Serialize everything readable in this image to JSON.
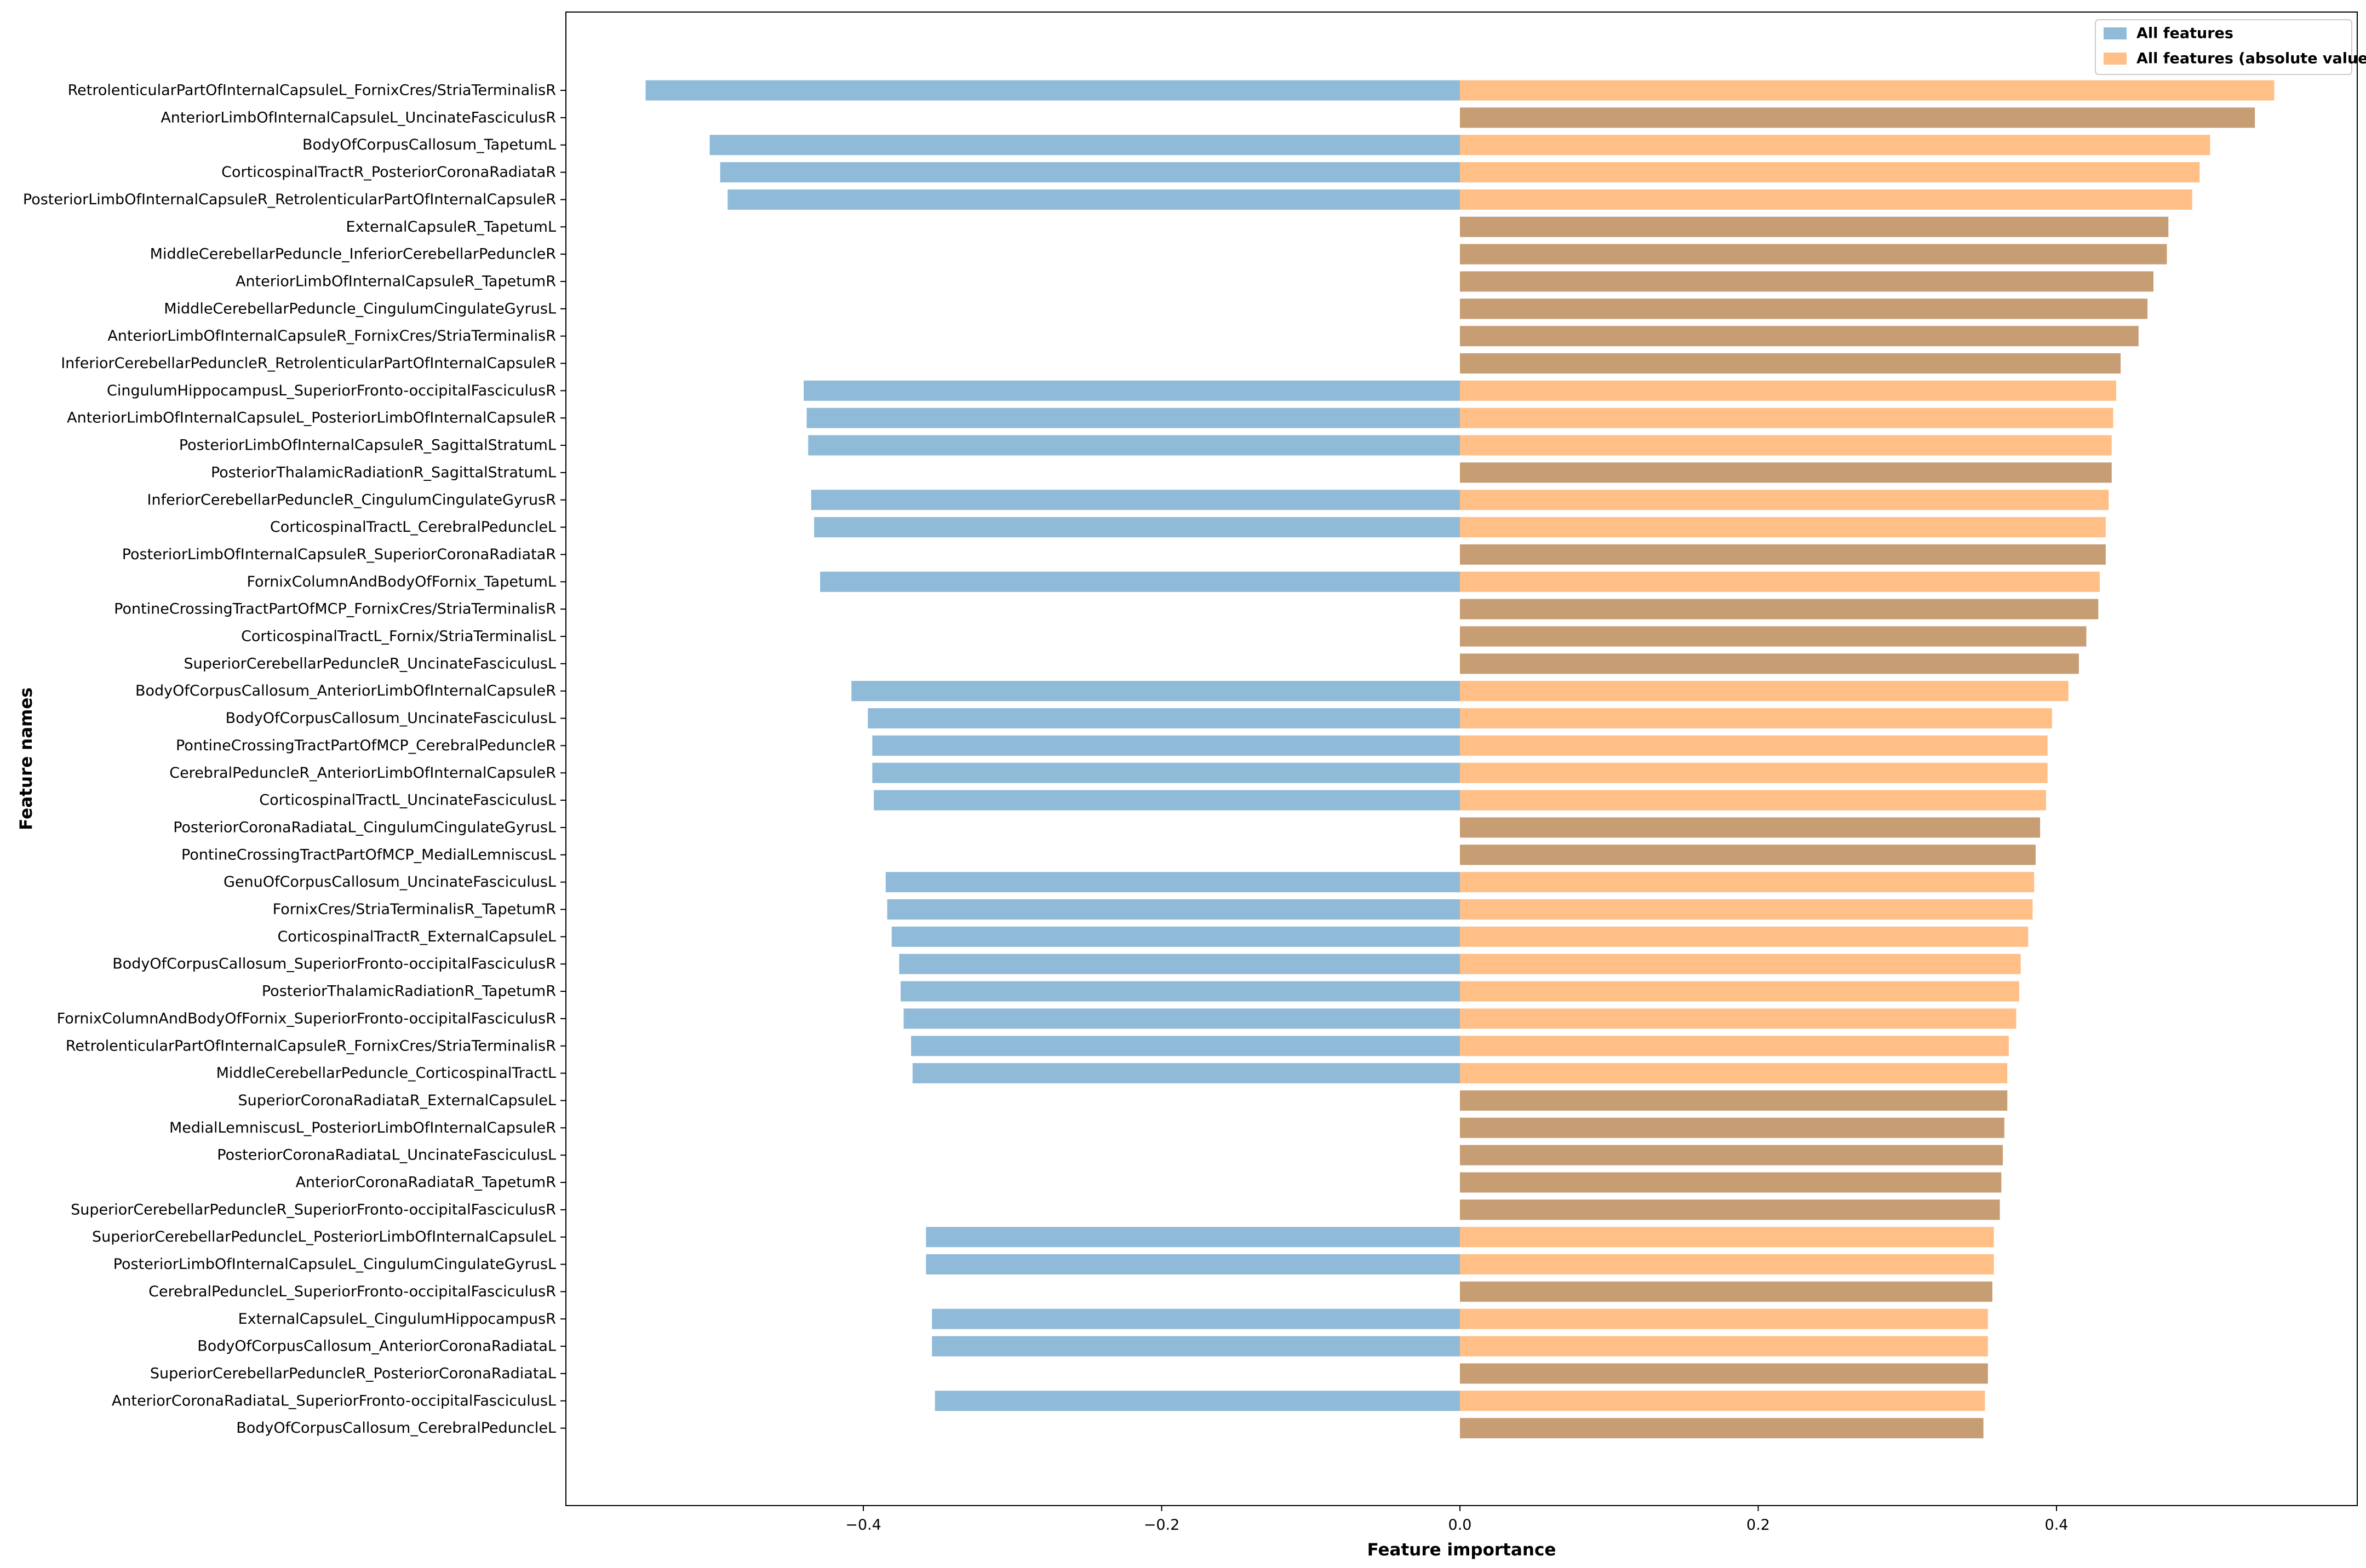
{
  "chart_data": {
    "type": "bar",
    "orientation": "horizontal",
    "xlabel": "Feature importance",
    "ylabel": "Feature names",
    "xlim": [
      -0.6,
      0.6
    ],
    "xticks": [
      -0.4,
      -0.2,
      0.0,
      0.2,
      0.4
    ],
    "xtick_labels": [
      "−0.4",
      "−0.2",
      "0.0",
      "0.2",
      "0.4"
    ],
    "grid": false,
    "legend_position": "top-right",
    "series": [
      {
        "name": "All features",
        "color": "#1f77b4",
        "opacity": 0.5
      },
      {
        "name": "All features (absolute values)",
        "color": "#ff7f0e",
        "opacity": 0.5
      }
    ],
    "features": [
      {
        "name": "RetrolenticularPartOfInternalCapsuleL_FornixCres/StriaTerminalisR",
        "value": -0.546,
        "abs": 0.546
      },
      {
        "name": "AnteriorLimbOfInternalCapsuleL_UncinateFasciculusR",
        "value": 0.533,
        "abs": 0.533
      },
      {
        "name": "BodyOfCorpusCallosum_TapetumL",
        "value": -0.503,
        "abs": 0.503
      },
      {
        "name": "CorticospinalTractR_PosteriorCoronaRadiataR",
        "value": -0.496,
        "abs": 0.496
      },
      {
        "name": "PosteriorLimbOfInternalCapsuleR_RetrolenticularPartOfInternalCapsuleR",
        "value": -0.491,
        "abs": 0.491
      },
      {
        "name": "ExternalCapsuleR_TapetumL",
        "value": 0.475,
        "abs": 0.475
      },
      {
        "name": "MiddleCerebellarPeduncle_InferiorCerebellarPeduncleR",
        "value": 0.474,
        "abs": 0.474
      },
      {
        "name": "AnteriorLimbOfInternalCapsuleR_TapetumR",
        "value": 0.465,
        "abs": 0.465
      },
      {
        "name": "MiddleCerebellarPeduncle_CingulumCingulateGyrusL",
        "value": 0.461,
        "abs": 0.461
      },
      {
        "name": "AnteriorLimbOfInternalCapsuleR_FornixCres/StriaTerminalisR",
        "value": 0.455,
        "abs": 0.455
      },
      {
        "name": "InferiorCerebellarPeduncleR_RetrolenticularPartOfInternalCapsuleR",
        "value": 0.443,
        "abs": 0.443
      },
      {
        "name": "CingulumHippocampusL_SuperiorFronto-occipitalFasciculusR",
        "value": -0.44,
        "abs": 0.44
      },
      {
        "name": "AnteriorLimbOfInternalCapsuleL_PosteriorLimbOfInternalCapsuleR",
        "value": -0.438,
        "abs": 0.438
      },
      {
        "name": "PosteriorLimbOfInternalCapsuleR_SagittalStratumL",
        "value": -0.437,
        "abs": 0.437
      },
      {
        "name": "PosteriorThalamicRadiationR_SagittalStratumL",
        "value": 0.437,
        "abs": 0.437
      },
      {
        "name": "InferiorCerebellarPeduncleR_CingulumCingulateGyrusR",
        "value": -0.435,
        "abs": 0.435
      },
      {
        "name": "CorticospinalTractL_CerebralPeduncleL",
        "value": -0.433,
        "abs": 0.433
      },
      {
        "name": "PosteriorLimbOfInternalCapsuleR_SuperiorCoronaRadiataR",
        "value": 0.433,
        "abs": 0.433
      },
      {
        "name": "FornixColumnAndBodyOfFornix_TapetumL",
        "value": -0.429,
        "abs": 0.429
      },
      {
        "name": "PontineCrossingTractPartOfMCP_FornixCres/StriaTerminalisR",
        "value": 0.428,
        "abs": 0.428
      },
      {
        "name": "CorticospinalTractL_Fornix/StriaTerminalisL",
        "value": 0.42,
        "abs": 0.42
      },
      {
        "name": "SuperiorCerebellarPeduncleR_UncinateFasciculusL",
        "value": 0.415,
        "abs": 0.415
      },
      {
        "name": "BodyOfCorpusCallosum_AnteriorLimbOfInternalCapsuleR",
        "value": -0.408,
        "abs": 0.408
      },
      {
        "name": "BodyOfCorpusCallosum_UncinateFasciculusL",
        "value": -0.397,
        "abs": 0.397
      },
      {
        "name": "PontineCrossingTractPartOfMCP_CerebralPeduncleR",
        "value": -0.394,
        "abs": 0.394
      },
      {
        "name": "CerebralPeduncleR_AnteriorLimbOfInternalCapsuleR",
        "value": -0.394,
        "abs": 0.394
      },
      {
        "name": "CorticospinalTractL_UncinateFasciculusL",
        "value": -0.393,
        "abs": 0.393
      },
      {
        "name": "PosteriorCoronaRadiataL_CingulumCingulateGyrusL",
        "value": 0.389,
        "abs": 0.389
      },
      {
        "name": "PontineCrossingTractPartOfMCP_MedialLemniscusL",
        "value": 0.386,
        "abs": 0.386
      },
      {
        "name": "GenuOfCorpusCallosum_UncinateFasciculusL",
        "value": -0.385,
        "abs": 0.385
      },
      {
        "name": "FornixCres/StriaTerminalisR_TapetumR",
        "value": -0.384,
        "abs": 0.384
      },
      {
        "name": "CorticospinalTractR_ExternalCapsuleL",
        "value": -0.381,
        "abs": 0.381
      },
      {
        "name": "BodyOfCorpusCallosum_SuperiorFronto-occipitalFasciculusR",
        "value": -0.376,
        "abs": 0.376
      },
      {
        "name": "PosteriorThalamicRadiationR_TapetumR",
        "value": -0.375,
        "abs": 0.375
      },
      {
        "name": "FornixColumnAndBodyOfFornix_SuperiorFronto-occipitalFasciculusR",
        "value": -0.373,
        "abs": 0.373
      },
      {
        "name": "RetrolenticularPartOfInternalCapsuleR_FornixCres/StriaTerminalisR",
        "value": -0.368,
        "abs": 0.368
      },
      {
        "name": "MiddleCerebellarPeduncle_CorticospinalTractL",
        "value": -0.367,
        "abs": 0.367
      },
      {
        "name": "SuperiorCoronaRadiataR_ExternalCapsuleL",
        "value": 0.367,
        "abs": 0.367
      },
      {
        "name": "MedialLemniscusL_PosteriorLimbOfInternalCapsuleR",
        "value": 0.365,
        "abs": 0.365
      },
      {
        "name": "PosteriorCoronaRadiataL_UncinateFasciculusL",
        "value": 0.364,
        "abs": 0.364
      },
      {
        "name": "AnteriorCoronaRadiataR_TapetumR",
        "value": 0.363,
        "abs": 0.363
      },
      {
        "name": "SuperiorCerebellarPeduncleR_SuperiorFronto-occipitalFasciculusR",
        "value": 0.362,
        "abs": 0.362
      },
      {
        "name": "SuperiorCerebellarPeduncleL_PosteriorLimbOfInternalCapsuleL",
        "value": -0.358,
        "abs": 0.358
      },
      {
        "name": "PosteriorLimbOfInternalCapsuleL_CingulumCingulateGyrusL",
        "value": -0.358,
        "abs": 0.358
      },
      {
        "name": "CerebralPeduncleL_SuperiorFronto-occipitalFasciculusR",
        "value": 0.357,
        "abs": 0.357
      },
      {
        "name": "ExternalCapsuleL_CingulumHippocampusR",
        "value": -0.354,
        "abs": 0.354
      },
      {
        "name": "BodyOfCorpusCallosum_AnteriorCoronaRadiataL",
        "value": -0.354,
        "abs": 0.354
      },
      {
        "name": "SuperiorCerebellarPeduncleR_PosteriorCoronaRadiataL",
        "value": 0.354,
        "abs": 0.354
      },
      {
        "name": "AnteriorCoronaRadiataL_SuperiorFronto-occipitalFasciculusL",
        "value": -0.352,
        "abs": 0.352
      },
      {
        "name": "BodyOfCorpusCallosum_CerebralPeduncleL",
        "value": 0.351,
        "abs": 0.351
      }
    ]
  }
}
